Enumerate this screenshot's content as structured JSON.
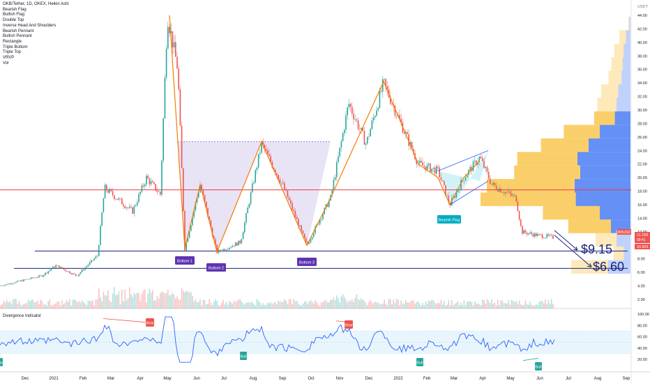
{
  "chart_header": {
    "symbol_line": "OKB/Tether, 1D, OKEX, Heikin Ashi",
    "indicators": [
      "Bearish Flag",
      "Bullish Flag",
      "Double Top",
      "Inverse Head And Shoulders",
      "Bearish Pennant",
      "Bullish Pennant",
      "Rectangle",
      "Triple Bottom",
      "Triple Top",
      "VRVP",
      "Vol"
    ]
  },
  "price_axis": {
    "currency": "USDT",
    "labels": [
      "44.00",
      "42.00",
      "40.00",
      "38.00",
      "36.00",
      "34.00",
      "32.00",
      "30.00",
      "28.00",
      "26.00",
      "24.00",
      "22.00",
      "20.00",
      "18.00",
      "16.00",
      "14.00",
      "12.00",
      "10.00",
      "8.00",
      "6.00",
      "4.00",
      "2.00"
    ],
    "badge_symbol": "OKBUSDT",
    "badge_price": "11.156",
    "badge_countdown": "09:41",
    "badge_low": "10.831"
  },
  "indicator_pane": {
    "title": "Divergence Indicator",
    "axis_labels": [
      "100.00",
      "80.00",
      "60.00",
      "40.00",
      "20.00"
    ]
  },
  "time_axis": {
    "labels": [
      "Dec",
      "2021",
      "Feb",
      "Mar",
      "Apr",
      "May",
      "Jun",
      "Jul",
      "Aug",
      "Sep",
      "Oct",
      "Nov",
      "Dec",
      "2022",
      "Feb",
      "Mar",
      "Apr",
      "May",
      "Jun",
      "Jul",
      "Aug",
      "Sep"
    ]
  },
  "annotations": {
    "bottom1": "Bottom 1",
    "bottom2": "Bottom 2",
    "bottom3": "Bottom 3",
    "bearish_flag": "Bearish Flag",
    "target1": "$9.15",
    "target2": "$6.60",
    "div_bear": "Bear",
    "div_bull": "Bull"
  },
  "colors": {
    "up": "#26a69a",
    "down": "#ef5350",
    "resistance": "#f23645",
    "support": "#1a237e",
    "pattern": "#f57c00",
    "triple_bottom_fill": "#e1d9f3",
    "flag_fill": "#b2ebf2",
    "vrvp_up": "#f9c74f",
    "vrvp_down": "#4a7cf4",
    "indicator_line": "#2962ff"
  },
  "chart_data": {
    "type": "candlestick",
    "title": "OKB/Tether, 1D, OKEX, Heikin Ashi",
    "y_range": [
      1,
      45
    ],
    "key_points": [
      {
        "date": "2020-12",
        "price": 4.0
      },
      {
        "date": "2021-01",
        "price": 7.0
      },
      {
        "date": "2021-02",
        "price": 5.5
      },
      {
        "date": "2021-03",
        "price": 18.5
      },
      {
        "date": "2021-05",
        "price": 44.0
      },
      {
        "date": "2021-05",
        "price": 9.5
      },
      {
        "date": "2021-06",
        "price": 19.0
      },
      {
        "date": "2021-07",
        "price": 9.0
      },
      {
        "date": "2021-08",
        "price": 25.0
      },
      {
        "date": "2021-10",
        "price": 10.0
      },
      {
        "date": "2021-11",
        "price": 31.0
      },
      {
        "date": "2021-12",
        "price": 34.0
      },
      {
        "date": "2022-03",
        "price": 16.0
      },
      {
        "date": "2022-04",
        "price": 22.0
      },
      {
        "date": "2022-05",
        "price": 12.0
      },
      {
        "date": "2022-06",
        "price": 11.156
      }
    ],
    "horizontal_lines": [
      {
        "price": 18.2
      },
      {
        "price": 9.15
      },
      {
        "price": 6.6
      }
    ],
    "targets": [
      "$9.15",
      "$6.60"
    ],
    "indicator_range": [
      0,
      100
    ]
  }
}
